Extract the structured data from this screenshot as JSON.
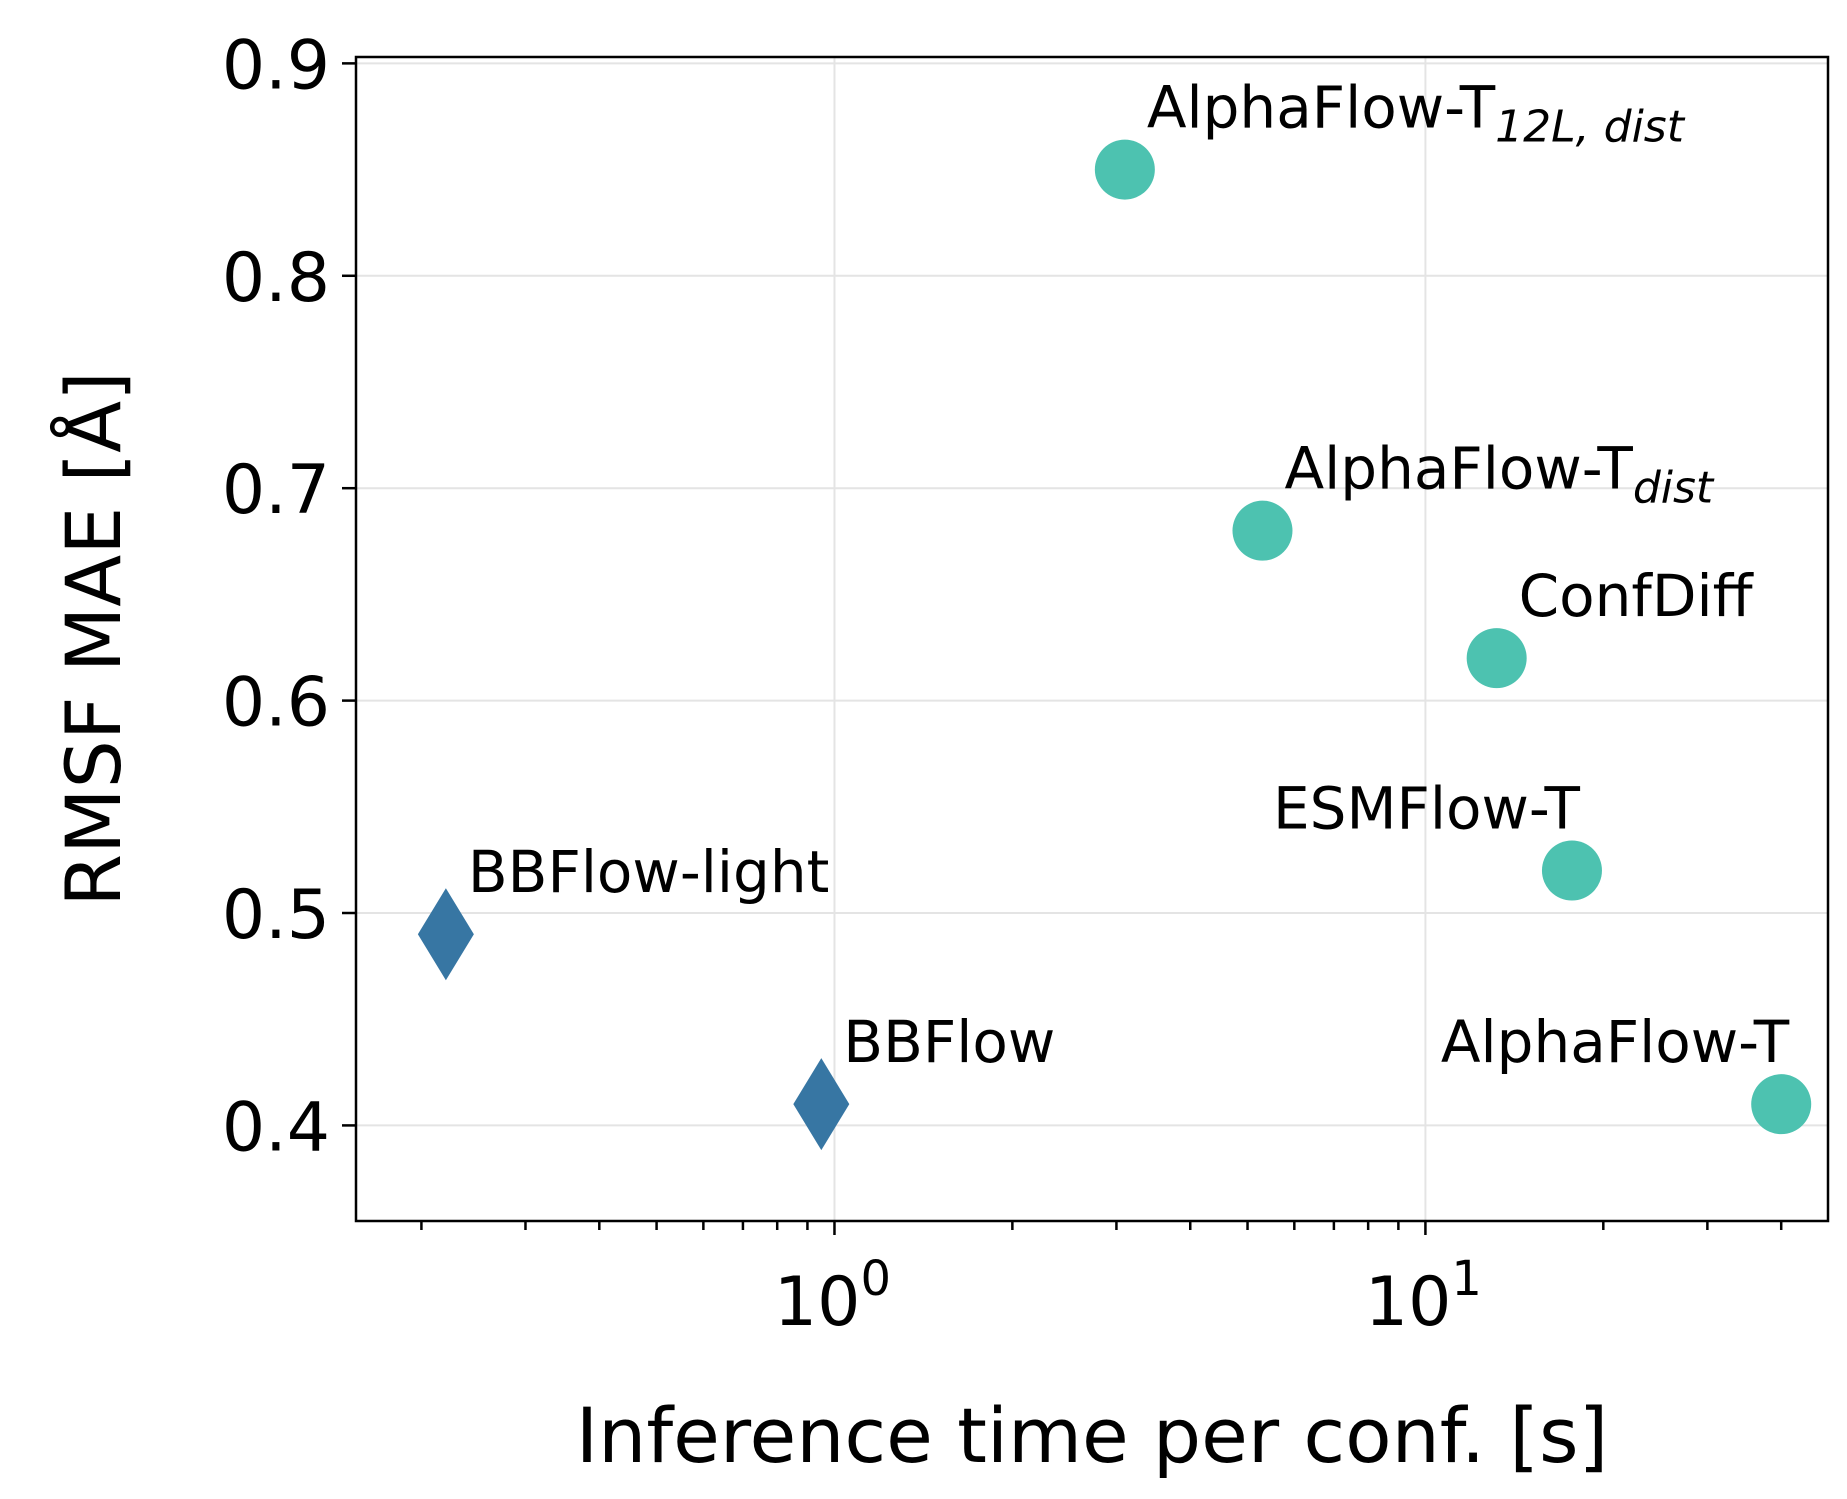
{
  "chart_data": {
    "type": "scatter",
    "xlabel": "Inference time per conf. [s]",
    "ylabel": "RMSF MAE [Å]",
    "xscale": "log",
    "xlim": [
      0.155,
      48
    ],
    "ylim": [
      0.355,
      0.903
    ],
    "grid": true,
    "xticks": [
      {
        "value": 1,
        "base": "10",
        "exp": "0"
      },
      {
        "value": 10,
        "base": "10",
        "exp": "1"
      }
    ],
    "yticks": [
      {
        "value": 0.4,
        "label": "0.4"
      },
      {
        "value": 0.5,
        "label": "0.5"
      },
      {
        "value": 0.6,
        "label": "0.6"
      },
      {
        "value": 0.7,
        "label": "0.7"
      },
      {
        "value": 0.8,
        "label": "0.8"
      },
      {
        "value": 0.9,
        "label": "0.9"
      }
    ],
    "colors": {
      "bbflow": "#3776a3",
      "baseline": "#4dc2b0"
    },
    "points": [
      {
        "id": "bbflow-light",
        "name": "BBFlow-light",
        "sub": "",
        "x": 0.22,
        "y": 0.49,
        "marker": "diamond",
        "color": "#3776a3",
        "label_pos": "upper-right"
      },
      {
        "id": "bbflow",
        "name": "BBFlow",
        "sub": "",
        "x": 0.95,
        "y": 0.41,
        "marker": "diamond",
        "color": "#3776a3",
        "label_pos": "upper-right"
      },
      {
        "id": "alphaflow-t-12l-dist",
        "name": "AlphaFlow-T",
        "sub": "12L, dist",
        "x": 3.1,
        "y": 0.85,
        "marker": "circle",
        "color": "#4dc2b0",
        "label_pos": "upper-right"
      },
      {
        "id": "alphaflow-t-dist",
        "name": "AlphaFlow-T",
        "sub": "dist",
        "x": 5.3,
        "y": 0.68,
        "marker": "circle",
        "color": "#4dc2b0",
        "label_pos": "upper-right"
      },
      {
        "id": "confdiff",
        "name": "ConfDiff",
        "sub": "",
        "x": 13.2,
        "y": 0.62,
        "marker": "circle",
        "color": "#4dc2b0",
        "label_pos": "upper-right"
      },
      {
        "id": "esmflow-t",
        "name": "ESMFlow-T",
        "sub": "",
        "x": 17.7,
        "y": 0.52,
        "marker": "circle",
        "color": "#4dc2b0",
        "label_pos": "upper-left"
      },
      {
        "id": "alphaflow-t",
        "name": "AlphaFlow-T",
        "sub": "",
        "x": 40.0,
        "y": 0.41,
        "marker": "circle",
        "color": "#4dc2b0",
        "label_pos": "upper-left"
      }
    ]
  }
}
